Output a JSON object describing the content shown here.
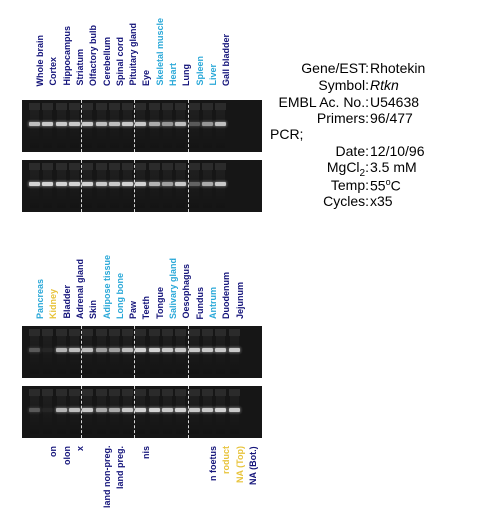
{
  "colors": {
    "dark_blue": "#14147a",
    "light_blue": "#2aa8d8",
    "yellow": "#e8c33a",
    "gel_bg": "#161616",
    "band": "#e8e8e8"
  },
  "panel1": {
    "lanes": [
      {
        "label": "Whole brain",
        "color": "dark_blue",
        "intensity_top": 0.8,
        "intensity_bottom": 0.9
      },
      {
        "label": "Cortex",
        "color": "dark_blue",
        "intensity_top": 0.85,
        "intensity_bottom": 0.9
      },
      {
        "label": "Hippocampus",
        "color": "dark_blue",
        "intensity_top": 0.85,
        "intensity_bottom": 0.9
      },
      {
        "label": "Striatum",
        "color": "dark_blue",
        "intensity_top": 0.85,
        "intensity_bottom": 0.9
      },
      {
        "label": "Olfactory bulb",
        "color": "dark_blue",
        "intensity_top": 0.85,
        "intensity_bottom": 0.9
      },
      {
        "label": "Cerebellum",
        "color": "dark_blue",
        "intensity_top": 0.8,
        "intensity_bottom": 0.85
      },
      {
        "label": "Spinal cord",
        "color": "dark_blue",
        "intensity_top": 0.8,
        "intensity_bottom": 0.85
      },
      {
        "label": "Pituitary gland",
        "color": "dark_blue",
        "intensity_top": 0.85,
        "intensity_bottom": 0.9
      },
      {
        "label": "Eye",
        "color": "dark_blue",
        "intensity_top": 0.85,
        "intensity_bottom": 0.9
      },
      {
        "label": "Skeletal muscle",
        "color": "light_blue",
        "intensity_top": 0.7,
        "intensity_bottom": 0.75
      },
      {
        "label": "Heart",
        "color": "light_blue",
        "intensity_top": 0.6,
        "intensity_bottom": 0.65
      },
      {
        "label": "Lung",
        "color": "dark_blue",
        "intensity_top": 0.8,
        "intensity_bottom": 0.85
      },
      {
        "label": "Spleen",
        "color": "light_blue",
        "intensity_top": 0.3,
        "intensity_bottom": 0.35
      },
      {
        "label": "Liver",
        "color": "light_blue",
        "intensity_top": 0.6,
        "intensity_bottom": 0.7
      },
      {
        "label": "Gall bladder",
        "color": "dark_blue",
        "intensity_top": 0.8,
        "intensity_bottom": 0.85
      }
    ],
    "dividers_after": [
      4,
      8,
      12
    ]
  },
  "panel2": {
    "lanes": [
      {
        "label": "Pancreas",
        "color": "light_blue",
        "intensity_top": 0.3,
        "intensity_bottom": 0.3
      },
      {
        "label": "Kidney",
        "color": "yellow",
        "intensity_top": 0.05,
        "intensity_bottom": 0.05
      },
      {
        "label": "Bladder",
        "color": "dark_blue",
        "intensity_top": 0.75,
        "intensity_bottom": 0.75
      },
      {
        "label": "Adrenal gland",
        "color": "dark_blue",
        "intensity_top": 0.8,
        "intensity_bottom": 0.8
      },
      {
        "label": "Skin",
        "color": "dark_blue",
        "intensity_top": 0.8,
        "intensity_bottom": 0.85
      },
      {
        "label": "Adipose tissue",
        "color": "light_blue",
        "intensity_top": 0.65,
        "intensity_bottom": 0.7
      },
      {
        "label": "Long bone",
        "color": "light_blue",
        "intensity_top": 0.65,
        "intensity_bottom": 0.7
      },
      {
        "label": "Paw",
        "color": "dark_blue",
        "intensity_top": 0.8,
        "intensity_bottom": 0.85
      },
      {
        "label": "Teeth",
        "color": "dark_blue",
        "intensity_top": 0.9,
        "intensity_bottom": 0.9
      },
      {
        "label": "Tongue",
        "color": "dark_blue",
        "intensity_top": 0.9,
        "intensity_bottom": 0.9
      },
      {
        "label": "Salivary gland",
        "color": "light_blue",
        "intensity_top": 0.85,
        "intensity_bottom": 0.85
      },
      {
        "label": "Oesophagus",
        "color": "dark_blue",
        "intensity_top": 0.85,
        "intensity_bottom": 0.9
      },
      {
        "label": "Fundus",
        "color": "dark_blue",
        "intensity_top": 0.85,
        "intensity_bottom": 0.85
      },
      {
        "label": "Antrum",
        "color": "light_blue",
        "intensity_top": 0.85,
        "intensity_bottom": 0.85
      },
      {
        "label": "Duodenum",
        "color": "dark_blue",
        "intensity_top": 0.85,
        "intensity_bottom": 0.9
      },
      {
        "label": "Jejunum",
        "color": "dark_blue",
        "intensity_top": 0.85,
        "intensity_bottom": 0.85
      }
    ],
    "dividers_after": [
      4,
      8,
      12
    ]
  },
  "panel3": {
    "lanes": [
      {
        "label": "",
        "color": "dark_blue"
      },
      {
        "label": "on",
        "color": "dark_blue"
      },
      {
        "label": "olon",
        "color": "dark_blue"
      },
      {
        "label": "x",
        "color": "dark_blue"
      },
      {
        "label": "",
        "color": "dark_blue"
      },
      {
        "label": "land non-preg.",
        "color": "dark_blue"
      },
      {
        "label": "land preg.",
        "color": "dark_blue"
      },
      {
        "label": "",
        "color": "dark_blue"
      },
      {
        "label": "nis",
        "color": "dark_blue"
      },
      {
        "label": "",
        "color": "dark_blue"
      },
      {
        "label": "",
        "color": "dark_blue"
      },
      {
        "label": "",
        "color": "dark_blue"
      },
      {
        "label": "",
        "color": "dark_blue"
      },
      {
        "label": "n foetus",
        "color": "dark_blue"
      },
      {
        "label": "roduct",
        "color": "yellow"
      },
      {
        "label": "NA (Top)",
        "color": "yellow"
      },
      {
        "label": "NA (Bot.)",
        "color": "dark_blue"
      }
    ]
  },
  "info": {
    "gene_key": "Gene/EST:",
    "gene_val": "Rhotekin",
    "symbol_key": "Symbol:",
    "symbol_val": "Rtkn",
    "embl_key": "EMBL Ac. No.:",
    "embl_val": "U54638",
    "primers_key": "Primers:",
    "primers_val": "96/477",
    "pcr_label": "PCR;",
    "date_key": "Date:",
    "date_val": "12/10/96",
    "mgcl_key_main": "MgCl",
    "mgcl_key_sub": "2",
    "mgcl_key_colon": ":",
    "mgcl_val": "3.5 mM",
    "temp_key": "Temp:",
    "temp_val": "55",
    "temp_sup": "o",
    "temp_unit": "C",
    "cycles_key": "Cycles:",
    "cycles_val": "x35"
  }
}
